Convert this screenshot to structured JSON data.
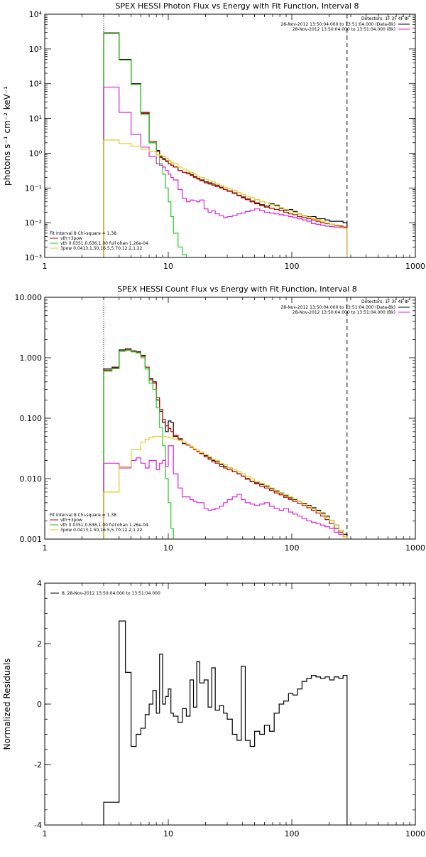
{
  "chart_data": [
    {
      "type": "line",
      "title": "SPEX HESSI Photon Flux vs Energy with Fit Function, Interval 8",
      "xlabel": "",
      "ylabel": "photons s⁻¹ cm⁻² keV⁻¹",
      "xscale": "log",
      "yscale": "log",
      "xlim": [
        1,
        1000
      ],
      "ylim": [
        0.001,
        10000
      ],
      "x_ticks": [
        1,
        10,
        100,
        1000
      ],
      "x_tick_labels": [
        "1",
        "10",
        "100",
        "1000"
      ],
      "y_ticks": [
        0.001,
        0.01,
        0.1,
        1,
        10,
        100,
        1000,
        10000
      ],
      "y_tick_labels": [
        "10⁻³",
        "10⁻²",
        "10⁻¹",
        "10⁰",
        "10¹",
        "10²",
        "10³",
        "10⁴"
      ],
      "vlines": [
        {
          "x": 3,
          "style": "dotted"
        },
        {
          "x": 280,
          "style": "dashed"
        }
      ],
      "legend_top": {
        "placement": "top-right",
        "header": "Detectors: 1F 3F 4F 8F",
        "entries": [
          {
            "label": "28-Nov-2012 13:50:04.000 to 13:51:04.000 (Data-Bk)",
            "color": "#000000"
          },
          {
            "label": "28-Nov-2012 13:50:04.000 to 13:51:04.000 (Bk)",
            "color": "#dd22dd"
          }
        ]
      },
      "legend_bottom": {
        "placement": "bottom-left",
        "header": "Fit Interval 8   Chi-square = 1.38",
        "entries": [
          {
            "label": "vth+3pow",
            "color": "#cc0000"
          },
          {
            "label": "vth 0.0351,0.636,1.00  full ohan 1.26e-04",
            "color": "#22cc22"
          },
          {
            "label": "3pow 0.0413,1.50,16.5,5.70,12.2,1.22",
            "color": "#ddcc22"
          }
        ]
      },
      "edges": [
        3,
        3.5,
        4,
        4.5,
        5,
        5.5,
        6,
        6.5,
        7,
        7.5,
        8,
        8.5,
        9,
        9.5,
        10,
        10.5,
        11,
        12,
        13,
        14,
        15,
        16,
        17,
        18,
        19.5,
        21,
        22.5,
        24,
        26,
        28,
        30,
        33,
        36,
        39,
        42,
        46,
        50,
        55,
        60,
        66,
        72,
        79,
        86,
        94,
        102,
        111,
        121,
        132,
        144,
        157,
        171,
        186,
        202,
        220,
        240,
        260,
        280
      ],
      "series": [
        {
          "name": "",
          "color": "#000000",
          "values": [
            2900,
            2900,
            500,
            500,
            100,
            100,
            15,
            15,
            2,
            2,
            1.2,
            0.8,
            0.7,
            0.6,
            0.5,
            0.45,
            0.4,
            0.32,
            0.28,
            0.27,
            0.24,
            0.21,
            0.19,
            0.17,
            0.15,
            0.14,
            0.13,
            0.12,
            0.105,
            0.09,
            0.082,
            0.072,
            0.062,
            0.055,
            0.048,
            0.042,
            0.037,
            0.033,
            0.03,
            0.035,
            0.032,
            0.026,
            0.023,
            0.024,
            0.021,
            0.018,
            0.016,
            0.015,
            0.015,
            0.013,
            0.013,
            0.012,
            0.011,
            0.011,
            0.011,
            0.01
          ]
        },
        {
          "name": "",
          "color": "#cc0000",
          "values": [
            2800,
            2800,
            480,
            480,
            95,
            95,
            14,
            14,
            2.2,
            2.2,
            1.1,
            0.75,
            0.65,
            0.58,
            0.5,
            0.45,
            0.4,
            0.32,
            0.28,
            0.26,
            0.23,
            0.2,
            0.18,
            0.16,
            0.14,
            0.13,
            0.12,
            0.11,
            0.1,
            0.09,
            0.08,
            0.07,
            0.06,
            0.052,
            0.046,
            0.04,
            0.035,
            0.031,
            0.028,
            0.026,
            0.024,
            0.022,
            0.02,
            0.018,
            0.017,
            0.015,
            0.014,
            0.013,
            0.012,
            0.011,
            0.01,
            0.0095,
            0.009,
            0.0085,
            0.008,
            0.0075
          ]
        },
        {
          "name": "",
          "color": "#22cc22",
          "values": [
            2800,
            2800,
            480,
            480,
            95,
            95,
            13,
            13,
            2,
            2,
            0.9,
            0.5,
            0.25,
            0.1,
            0.04,
            0.015,
            0.005,
            0.002,
            0.0012,
            0.0008
          ]
        },
        {
          "name": "",
          "color": "#dd22dd",
          "values": [
            80,
            80,
            15,
            15,
            3.5,
            3.5,
            1.5,
            1.5,
            0.8,
            0.8,
            0.5,
            0.45,
            0.4,
            0.32,
            0.25,
            0.2,
            0.17,
            0.09,
            0.05,
            0.04,
            0.045,
            0.043,
            0.04,
            0.045,
            0.025,
            0.02,
            0.022,
            0.018,
            0.016,
            0.014,
            0.015,
            0.016,
            0.018,
            0.019,
            0.021,
            0.023,
            0.025,
            0.022,
            0.02,
            0.019,
            0.018,
            0.017,
            0.016,
            0.015,
            0.014,
            0.013,
            0.012,
            0.011,
            0.0095,
            0.009,
            0.0085,
            0.008,
            0.0078,
            0.0075,
            0.0072,
            0.007
          ]
        },
        {
          "name": "",
          "color": "#ddcc22",
          "values": [
            2.4,
            2.4,
            1.9,
            1.9,
            1.6,
            1.6,
            1.3,
            1.3,
            1.1,
            1.1,
            0.9,
            0.85,
            0.8,
            0.72,
            0.62,
            0.55,
            0.5,
            0.4,
            0.35,
            0.31,
            0.28,
            0.25,
            0.22,
            0.2,
            0.18,
            0.16,
            0.15,
            0.13,
            0.12,
            0.105,
            0.095,
            0.085,
            0.075,
            0.066,
            0.058,
            0.052,
            0.046,
            0.041,
            0.037,
            0.033,
            0.03,
            0.027,
            0.024,
            0.022,
            0.02,
            0.018,
            0.016,
            0.0145,
            0.013,
            0.012,
            0.011,
            0.0098,
            0.009,
            0.0082,
            0.0075,
            0.007
          ]
        }
      ]
    },
    {
      "type": "line",
      "title": "SPEX HESSI Count Flux vs Energy with Fit Function, Interval 8",
      "xlabel": "",
      "ylabel": "",
      "xscale": "log",
      "yscale": "log",
      "xlim": [
        1,
        1000
      ],
      "ylim": [
        0.001,
        10
      ],
      "x_ticks": [
        1,
        10,
        100,
        1000
      ],
      "x_tick_labels": [
        "1",
        "10",
        "100",
        "1000"
      ],
      "y_ticks": [
        0.001,
        0.01,
        0.1,
        1,
        10
      ],
      "y_tick_labels": [
        "0.001",
        "0.010",
        "0.100",
        "1.000",
        "10.000"
      ],
      "vlines": [
        {
          "x": 3,
          "style": "dotted"
        },
        {
          "x": 280,
          "style": "dashed"
        }
      ],
      "legend_top": {
        "placement": "top-right",
        "header": "Detectors: 1F 3F 4F 8F",
        "entries": [
          {
            "label": "28-Nov-2012 13:50:04.000 to 13:51:04.000 (Data-Bk)",
            "color": "#000000"
          },
          {
            "label": "28-Nov-2012 13:50:04.000 to 13:51:04.000 (Bk)",
            "color": "#dd22dd"
          }
        ]
      },
      "legend_bottom": {
        "placement": "bottom-left",
        "header": "Fit Interval 8   Chi-square = 1.38",
        "entries": [
          {
            "label": "vth+3pow",
            "color": "#cc0000"
          },
          {
            "label": "vth 0.0351,0.636,1.00  full ohan 1.26e-04",
            "color": "#22cc22"
          },
          {
            "label": "3pow 0.0413,1.50,16.5,5.70,12.2,1.22",
            "color": "#ddcc22"
          }
        ]
      },
      "edges": [
        3,
        3.5,
        4,
        4.5,
        5,
        5.5,
        6,
        6.5,
        7,
        7.5,
        8,
        8.5,
        9,
        9.5,
        10,
        10.5,
        11,
        12,
        13,
        14,
        15,
        16,
        17,
        18,
        19.5,
        21,
        22.5,
        24,
        26,
        28,
        30,
        33,
        36,
        39,
        42,
        46,
        50,
        55,
        60,
        66,
        72,
        79,
        86,
        94,
        102,
        111,
        121,
        132,
        144,
        157,
        171,
        186,
        202,
        220,
        240,
        260,
        280
      ],
      "series": [
        {
          "name": "",
          "color": "#000000",
          "values": [
            0.65,
            0.7,
            1.35,
            1.4,
            1.3,
            1.25,
            1.1,
            0.7,
            0.45,
            0.4,
            0.2,
            0.13,
            0.085,
            0.06,
            0.09,
            0.085,
            0.05,
            0.045,
            0.038,
            0.036,
            0.033,
            0.03,
            0.028,
            0.026,
            0.024,
            0.022,
            0.02,
            0.019,
            0.017,
            0.016,
            0.015,
            0.013,
            0.012,
            0.011,
            0.01,
            0.009,
            0.0085,
            0.008,
            0.0075,
            0.0068,
            0.0062,
            0.0058,
            0.0052,
            0.0048,
            0.0045,
            0.0042,
            0.0039,
            0.0036,
            0.0033,
            0.003,
            0.0027,
            0.0024,
            0.002,
            0.0017,
            0.0014,
            0.0012
          ]
        },
        {
          "name": "",
          "color": "#cc0000",
          "values": [
            0.62,
            0.68,
            1.3,
            1.35,
            1.28,
            1.22,
            1.05,
            0.7,
            0.43,
            0.38,
            0.22,
            0.14,
            0.095,
            0.075,
            0.068,
            0.06,
            0.052,
            0.046,
            0.04,
            0.036,
            0.033,
            0.03,
            0.028,
            0.026,
            0.023,
            0.021,
            0.019,
            0.018,
            0.016,
            0.015,
            0.014,
            0.013,
            0.012,
            0.011,
            0.0098,
            0.0089,
            0.0082,
            0.0075,
            0.007,
            0.0064,
            0.0058,
            0.0054,
            0.0049,
            0.0045,
            0.0042,
            0.0039,
            0.0036,
            0.0033,
            0.003,
            0.0027,
            0.0024,
            0.0021,
            0.0018,
            0.0015,
            0.0013,
            0.0011
          ]
        },
        {
          "name": "",
          "color": "#22cc22",
          "values": [
            0.6,
            0.66,
            1.28,
            1.32,
            1.25,
            1.2,
            1,
            0.65,
            0.38,
            0.3,
            0.15,
            0.07,
            0.035,
            0.01,
            0.004,
            0.0015,
            0.0008
          ]
        },
        {
          "name": "",
          "color": "#dd22dd",
          "values": [
            0.018,
            0.018,
            0.015,
            0.015,
            0.02,
            0.022,
            0.018,
            0.015,
            0.02,
            0.02,
            0.014,
            0.018,
            0.02,
            0.016,
            0.035,
            0.035,
            0.012,
            0.007,
            0.005,
            0.005,
            0.0045,
            0.0042,
            0.004,
            0.004,
            0.0032,
            0.003,
            0.0031,
            0.0032,
            0.0035,
            0.004,
            0.0045,
            0.005,
            0.0055,
            0.0045,
            0.004,
            0.0038,
            0.0036,
            0.0038,
            0.004,
            0.0035,
            0.0032,
            0.003,
            0.0032,
            0.0028,
            0.0026,
            0.0024,
            0.0022,
            0.002,
            0.0019,
            0.0018,
            0.0017,
            0.0016,
            0.0015,
            0.0013,
            0.0012,
            0.0011
          ]
        },
        {
          "name": "",
          "color": "#ddcc22",
          "values": [
            0.006,
            0.006,
            0.016,
            0.016,
            0.03,
            0.03,
            0.04,
            0.045,
            0.048,
            0.05,
            0.05,
            0.05,
            0.05,
            0.049,
            0.048,
            0.047,
            0.045,
            0.043,
            0.04,
            0.037,
            0.034,
            0.031,
            0.029,
            0.027,
            0.025,
            0.023,
            0.021,
            0.02,
            0.018,
            0.017,
            0.015,
            0.014,
            0.013,
            0.012,
            0.011,
            0.0099,
            0.009,
            0.0083,
            0.0077,
            0.007,
            0.0064,
            0.0059,
            0.0054,
            0.005,
            0.0046,
            0.0042,
            0.0038,
            0.0035,
            0.0032,
            0.0029,
            0.0026,
            0.0023,
            0.002,
            0.0017,
            0.0014,
            0.0011
          ]
        }
      ]
    },
    {
      "type": "line",
      "title": "",
      "xlabel": "",
      "ylabel": "Normalized Residuals",
      "xscale": "log",
      "yscale": "linear",
      "xlim": [
        1,
        1000
      ],
      "ylim": [
        -4,
        4
      ],
      "x_ticks": [
        1,
        10,
        100,
        1000
      ],
      "x_tick_labels": [
        "1",
        "10",
        "100",
        "1000"
      ],
      "y_ticks": [
        -4,
        -2,
        0,
        2,
        4
      ],
      "y_tick_labels": [
        "-4",
        "-2",
        "0",
        "2",
        "4"
      ],
      "legend_top": {
        "placement": "top-left",
        "header": "",
        "entries": [
          {
            "label": "8, 28-Nov-2012 13:50:04.000 to 13:51:04.000",
            "color": "#000000"
          }
        ]
      },
      "edges": [
        3,
        4,
        4.5,
        5,
        5.5,
        6,
        6.5,
        7,
        7.5,
        8,
        8.5,
        9,
        9.5,
        10,
        10.5,
        11,
        12,
        13,
        14,
        15,
        16,
        17,
        18,
        19.5,
        21,
        22.5,
        24,
        26,
        28,
        30,
        33,
        36,
        39,
        42,
        46,
        50,
        55,
        60,
        66,
        72,
        79,
        86,
        94,
        102,
        111,
        121,
        132,
        144,
        157,
        171,
        186,
        202,
        220,
        240,
        260,
        280
      ],
      "series": [
        {
          "name": "",
          "color": "#000000",
          "values": [
            -3.25,
            2.75,
            1.05,
            -1.4,
            -1.0,
            -0.8,
            -0.35,
            0.0,
            0.45,
            -0.3,
            1.65,
            0.0,
            0.25,
            0.5,
            -0.3,
            -0.4,
            -0.6,
            -0.15,
            -0.4,
            0.8,
            -0.1,
            1.4,
            0.7,
            0.8,
            -0.1,
            1.2,
            -0.2,
            -0.05,
            -0.3,
            -0.5,
            -1.0,
            -1.2,
            1.25,
            -1.2,
            -1.4,
            -0.9,
            -1.0,
            -0.7,
            -0.9,
            -0.3,
            0.0,
            0.1,
            0.35,
            0.3,
            0.5,
            0.75,
            0.85,
            0.95,
            0.9,
            0.85,
            0.9,
            0.8,
            0.9,
            0.85,
            0.95
          ]
        }
      ]
    }
  ]
}
